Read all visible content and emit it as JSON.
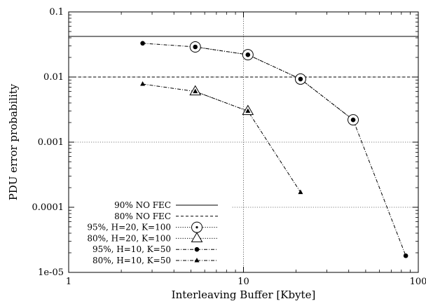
{
  "chart_data": {
    "type": "line",
    "xlabel": "Interleaving Buffer [Kbyte]",
    "ylabel": "PDU error probability",
    "xscale": "log",
    "yscale": "log",
    "xlim": [
      1,
      100
    ],
    "ylim": [
      1e-05,
      0.1
    ],
    "x_tick_labels": [
      "1",
      "10",
      "100"
    ],
    "y_tick_labels": [
      "1e-05",
      "0.0001",
      "0.001",
      "0.01",
      "0.1"
    ],
    "grid": "dotted lines at x = 10 and y = 0.01, 0.001, 0.0001",
    "legend_position": "bottom-left",
    "series": [
      {
        "name": "90% NO FEC",
        "style": "solid",
        "marker": "none",
        "x": [
          1,
          100
        ],
        "y": [
          0.042,
          0.042
        ]
      },
      {
        "name": "80% NO FEC",
        "style": "dashed",
        "marker": "none",
        "x": [
          1,
          100
        ],
        "y": [
          0.01,
          0.01
        ]
      },
      {
        "name": "95%, H=20, K=100",
        "style": "dotted",
        "marker": "circle",
        "x": [
          5.3,
          10.6,
          21.2,
          42.4
        ],
        "y": [
          0.029,
          0.022,
          0.0093,
          0.0022
        ]
      },
      {
        "name": "80%, H=20, K=100",
        "style": "dotted",
        "marker": "triangle",
        "x": [
          5.3,
          10.6
        ],
        "y": [
          0.006,
          0.003
        ]
      },
      {
        "name": "95%, H=10, K=50",
        "style": "dash-dot",
        "marker": "filled-circle",
        "x": [
          2.65,
          5.3,
          10.6,
          21.2,
          42.4,
          84.8
        ],
        "y": [
          0.033,
          0.029,
          0.022,
          0.0093,
          0.0022,
          1.8e-05
        ]
      },
      {
        "name": "80%, H=10, K=50",
        "style": "dash-dot",
        "marker": "filled-triangle",
        "x": [
          2.65,
          5.3,
          10.6,
          21.2
        ],
        "y": [
          0.0078,
          0.006,
          0.003,
          0.00017
        ]
      }
    ]
  }
}
